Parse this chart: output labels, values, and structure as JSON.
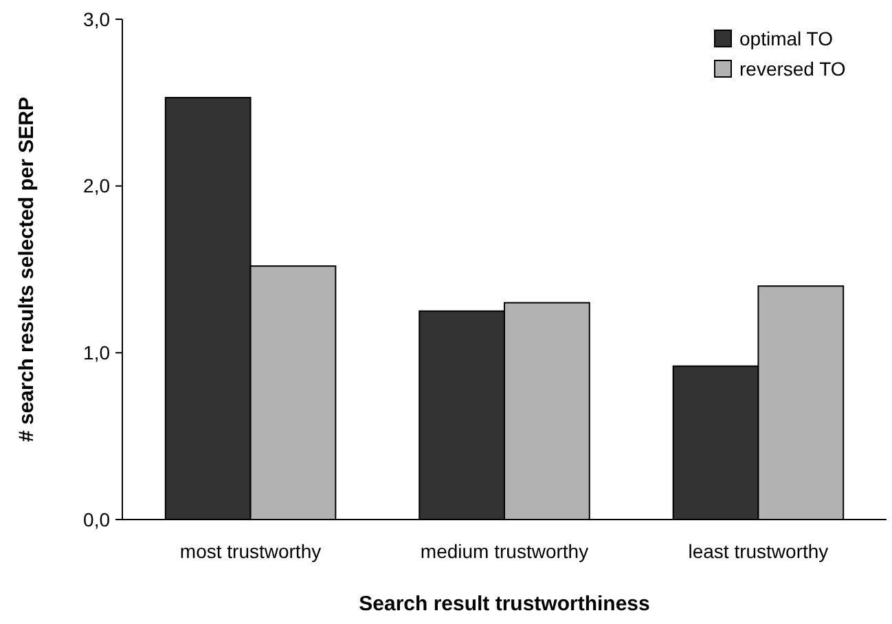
{
  "chart_data": {
    "type": "bar",
    "xlabel": "Search result trustworthiness",
    "ylabel": "# search results selected per SERP",
    "categories": [
      "most trustworthy",
      "medium trustworthy",
      "least trustworthy"
    ],
    "series": [
      {
        "name": "optimal TO",
        "color": "#333333",
        "values": [
          2.53,
          1.25,
          0.92
        ]
      },
      {
        "name": "reversed TO",
        "color": "#b2b2b2",
        "values": [
          1.52,
          1.3,
          1.4
        ]
      }
    ],
    "ylim": [
      0,
      3
    ],
    "yticks": [
      {
        "value": 0,
        "label": "0,0"
      },
      {
        "value": 1,
        "label": "1,0"
      },
      {
        "value": 2,
        "label": "2,0"
      },
      {
        "value": 3,
        "label": "3,0"
      }
    ],
    "grid": false,
    "legend": "top right"
  }
}
